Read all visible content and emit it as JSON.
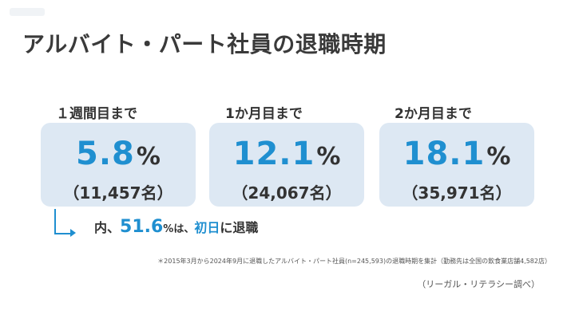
{
  "page": {
    "title": "アルバイト・パート社員の退職時期"
  },
  "cards": [
    {
      "label": "１週間目まで",
      "percent": "5.8",
      "percent_sign": "%",
      "count": "（11,457名）"
    },
    {
      "label": "1か月目まで",
      "percent": "12.1",
      "percent_sign": "%",
      "count": "（24,067名）"
    },
    {
      "label": "2か月目まで",
      "percent": "18.1",
      "percent_sign": "%",
      "count": "（35,971名）"
    }
  ],
  "callout": {
    "prefix": "内、",
    "value": "51.6",
    "value_unit": "%は、",
    "highlight": "初日",
    "suffix": "に退職"
  },
  "footnote": "＊2015年3月から2024年9月に退職したアルバイト・パート社員(n=245,593)の退職時期を集計（勤務先は全国の飲食業店舗4,582店）",
  "source": "（リーガル・リテラシー調べ）",
  "colors": {
    "accent": "#1f8fd0",
    "card_background": "#dde8f3",
    "text": "#333333"
  }
}
